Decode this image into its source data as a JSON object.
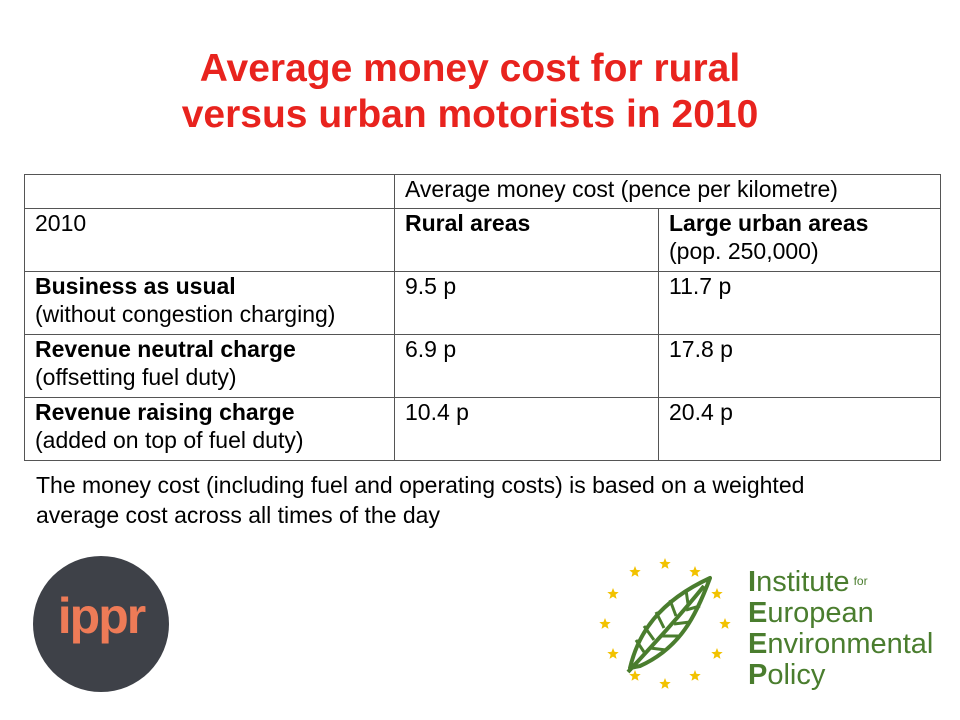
{
  "title": {
    "line1": "Average money cost for rural",
    "line2": "versus urban motorists in 2010"
  },
  "table": {
    "header_span": "Average money cost (pence per kilometre)",
    "year_label": "2010",
    "col_rural": "Rural areas",
    "col_urban": "Large urban areas",
    "col_urban_note": "(pop. 250,000)",
    "rows": [
      {
        "label": "Business as usual",
        "note": "(without congestion charging)",
        "rural": "9.5 p",
        "urban": "11.7 p"
      },
      {
        "label": "Revenue neutral charge",
        "note": "(offsetting fuel duty)",
        "rural": "6.9 p",
        "urban": "17.8 p"
      },
      {
        "label": "Revenue raising charge",
        "note": "(added on top of fuel duty)",
        "rural": "10.4 p",
        "urban": "20.4 p"
      }
    ]
  },
  "footnote": {
    "line1": "The money cost (including fuel and operating costs) is based on a weighted",
    "line2": "average cost across all times of the day"
  },
  "logos": {
    "ippr": {
      "text": "ippr",
      "bg_color": "#3e4148",
      "text_color": "#ee7b57"
    },
    "ieep": {
      "line1_initial": "I",
      "line1_rest": "nstitute",
      "line1_small": "for",
      "line2_initial": "E",
      "line2_rest": "uropean",
      "line3_initial": "E",
      "line3_rest": "nvironmental",
      "line4_initial": "P",
      "line4_rest": "olicy",
      "green": "#4a7d2e",
      "star_color": "#f2c200"
    }
  },
  "colors": {
    "title": "#e8231e",
    "table_border": "#555555"
  }
}
